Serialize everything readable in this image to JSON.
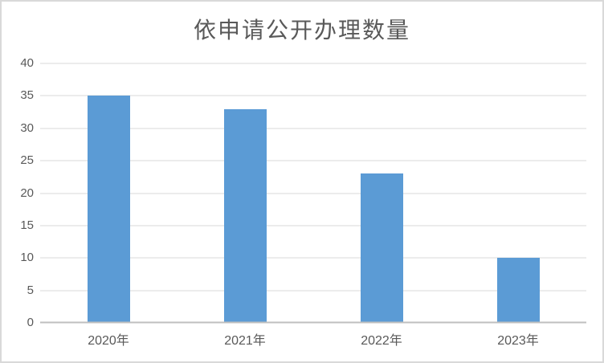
{
  "chart_data": {
    "type": "bar",
    "title": "依申请公开办理数量",
    "categories": [
      "2020年",
      "2021年",
      "2022年",
      "2023年"
    ],
    "values": [
      35,
      33,
      23,
      10
    ],
    "xlabel": "",
    "ylabel": "",
    "ylim": [
      0,
      40
    ],
    "ytick_step": 5,
    "ytick_labels": [
      "0",
      "5",
      "10",
      "15",
      "20",
      "25",
      "30",
      "35",
      "40"
    ],
    "grid": "horizontal",
    "legend": "none",
    "colors": {
      "bar": "#5b9bd5",
      "grid": "#d9d9d9",
      "axis": "#bfbfbf",
      "text": "#595959",
      "border": "#d9d9d9"
    }
  }
}
